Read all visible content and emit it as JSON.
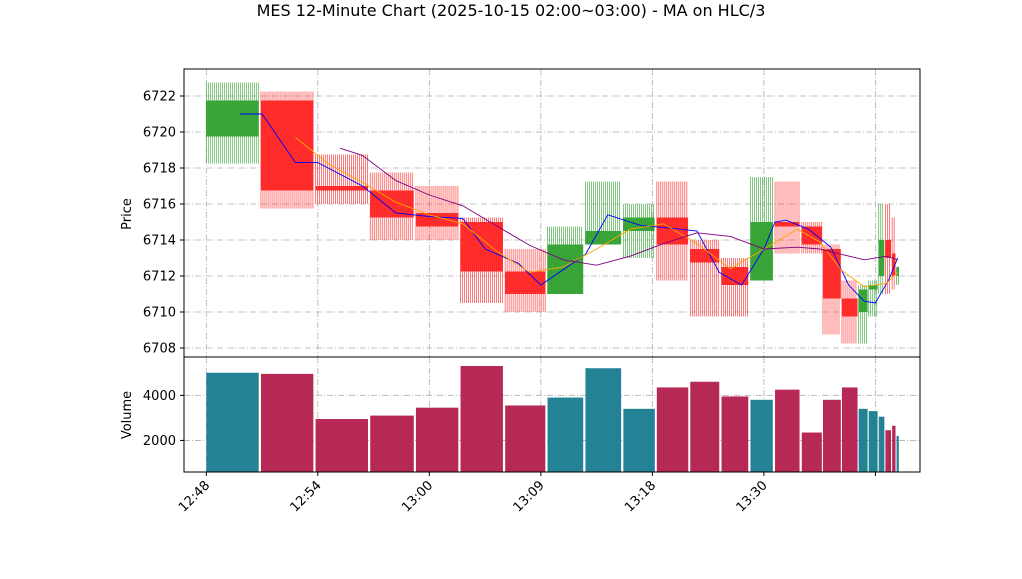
{
  "chart_data": {
    "type": "candlestick",
    "title": "MES 12-Minute Chart (2025-10-15 02:00~03:00) - MA on HLC/3",
    "price_panel": {
      "ylabel": "Price",
      "ylim": [
        6707.5,
        6723.5
      ],
      "yticks": [
        6708,
        6710,
        6712,
        6714,
        6716,
        6718,
        6720,
        6722
      ],
      "grid": true
    },
    "volume_panel": {
      "ylabel": "Volume",
      "ylim": [
        600,
        5700
      ],
      "yticks": [
        2000,
        4000
      ],
      "grid": true
    },
    "xlim": [
      0,
      33
    ],
    "xticks": [
      {
        "x": 1,
        "label": "12:48"
      },
      {
        "x": 6,
        "label": "12:54"
      },
      {
        "x": 11,
        "label": "13:00"
      },
      {
        "x": 16,
        "label": "13:09"
      },
      {
        "x": 21,
        "label": "13:18"
      },
      {
        "x": 26,
        "label": "13:30"
      },
      {
        "x": 31,
        "label": ""
      }
    ],
    "bars": [
      {
        "x0": 1.0,
        "x1": 3.35,
        "open": 6719.75,
        "high": 6722.75,
        "low": 6718.25,
        "close": 6721.75,
        "volume": 5000
      },
      {
        "x0": 3.45,
        "x1": 5.8,
        "open": 6721.75,
        "high": 6722.25,
        "low": 6715.75,
        "close": 6716.75,
        "volume": 4950
      },
      {
        "x0": 5.9,
        "x1": 8.25,
        "open": 6717.0,
        "high": 6718.75,
        "low": 6716.0,
        "close": 6716.75,
        "volume": 2950
      },
      {
        "x0": 8.35,
        "x1": 10.3,
        "open": 6716.75,
        "high": 6717.75,
        "low": 6714.0,
        "close": 6715.25,
        "volume": 3100
      },
      {
        "x0": 10.4,
        "x1": 12.3,
        "open": 6715.5,
        "high": 6717.0,
        "low": 6714.0,
        "close": 6714.75,
        "volume": 3450
      },
      {
        "x0": 12.4,
        "x1": 14.3,
        "open": 6715.0,
        "high": 6715.25,
        "low": 6710.5,
        "close": 6712.25,
        "volume": 5300
      },
      {
        "x0": 14.4,
        "x1": 16.2,
        "open": 6712.25,
        "high": 6713.5,
        "low": 6710.0,
        "close": 6711.0,
        "volume": 3550
      },
      {
        "x0": 16.3,
        "x1": 17.9,
        "open": 6711.0,
        "high": 6714.75,
        "low": 6711.0,
        "close": 6713.75,
        "volume": 3900
      },
      {
        "x0": 18.0,
        "x1": 19.6,
        "open": 6713.75,
        "high": 6717.25,
        "low": 6713.75,
        "close": 6714.5,
        "volume": 5200
      },
      {
        "x0": 19.7,
        "x1": 21.1,
        "open": 6714.5,
        "high": 6716.0,
        "low": 6713.0,
        "close": 6715.25,
        "volume": 3400
      },
      {
        "x0": 21.2,
        "x1": 22.6,
        "open": 6715.25,
        "high": 6717.25,
        "low": 6711.75,
        "close": 6713.75,
        "volume": 4350
      },
      {
        "x0": 22.7,
        "x1": 24.0,
        "open": 6713.5,
        "high": 6714.0,
        "low": 6709.75,
        "close": 6712.75,
        "volume": 4600
      },
      {
        "x0": 24.1,
        "x1": 25.3,
        "open": 6712.5,
        "high": 6713.0,
        "low": 6709.75,
        "close": 6711.5,
        "volume": 3950
      },
      {
        "x0": 25.4,
        "x1": 26.4,
        "open": 6711.75,
        "high": 6717.5,
        "low": 6711.75,
        "close": 6715.0,
        "volume": 3800
      },
      {
        "x0": 26.5,
        "x1": 27.6,
        "open": 6715.0,
        "high": 6717.25,
        "low": 6713.25,
        "close": 6714.75,
        "volume": 4250
      },
      {
        "x0": 27.7,
        "x1": 28.6,
        "open": 6714.75,
        "high": 6715.0,
        "low": 6713.25,
        "close": 6713.75,
        "volume": 2350
      },
      {
        "x0": 28.65,
        "x1": 29.45,
        "open": 6713.5,
        "high": 6713.75,
        "low": 6708.75,
        "close": 6710.75,
        "volume": 3800
      },
      {
        "x0": 29.5,
        "x1": 30.2,
        "open": 6710.75,
        "high": 6711.75,
        "low": 6708.25,
        "close": 6709.75,
        "volume": 4350
      },
      {
        "x0": 30.25,
        "x1": 30.65,
        "open": 6710.0,
        "high": 6711.5,
        "low": 6708.25,
        "close": 6711.25,
        "volume": 3400
      },
      {
        "x0": 30.7,
        "x1": 31.1,
        "open": 6711.25,
        "high": 6711.75,
        "low": 6709.75,
        "close": 6711.5,
        "volume": 3300
      },
      {
        "x0": 31.15,
        "x1": 31.4,
        "open": 6712.0,
        "high": 6716.0,
        "low": 6711.0,
        "close": 6714.0,
        "volume": 3050
      },
      {
        "x0": 31.45,
        "x1": 31.7,
        "open": 6714.0,
        "high": 6716.0,
        "low": 6711.0,
        "close": 6713.0,
        "volume": 2450
      },
      {
        "x0": 31.75,
        "x1": 31.9,
        "open": 6713.25,
        "high": 6715.25,
        "low": 6711.25,
        "close": 6712.0,
        "volume": 2650
      },
      {
        "x0": 31.95,
        "x1": 32.05,
        "open": 6712.0,
        "high": 6712.5,
        "low": 6711.5,
        "close": 6712.5,
        "volume": 2200
      }
    ],
    "moving_averages": [
      {
        "color": "#0000ff",
        "x": [
          2.5,
          3.5,
          5.0,
          6.0,
          8.0,
          9.5,
          11.0,
          12.5,
          13.5,
          15.0,
          16.0,
          18.0,
          19.0,
          20.5,
          21.5,
          23.0,
          24.0,
          25.0,
          26.0,
          26.5,
          27.0,
          28.0,
          29.0,
          29.8,
          30.5,
          31.0,
          31.6,
          32.0
        ],
        "y": [
          6721.0,
          6721.0,
          6718.3,
          6718.3,
          6717.0,
          6715.5,
          6715.3,
          6715.2,
          6713.5,
          6712.7,
          6711.5,
          6713.2,
          6715.4,
          6714.8,
          6714.7,
          6714.5,
          6712.2,
          6711.5,
          6713.5,
          6715.0,
          6715.1,
          6714.6,
          6713.6,
          6711.5,
          6710.6,
          6710.5,
          6711.8,
          6713.0
        ]
      },
      {
        "color": "#ffa500",
        "x": [
          5.0,
          6.5,
          8.0,
          9.5,
          11.0,
          12.5,
          14.0,
          15.5,
          17.0,
          18.5,
          20.0,
          21.5,
          23.0,
          24.5,
          26.0,
          27.5,
          28.5,
          29.5,
          30.5,
          31.5,
          32.0
        ],
        "y": [
          6719.7,
          6718.2,
          6717.2,
          6716.1,
          6715.4,
          6714.9,
          6713.4,
          6712.2,
          6712.5,
          6713.5,
          6714.6,
          6714.9,
          6713.8,
          6712.4,
          6713.5,
          6714.6,
          6713.9,
          6712.3,
          6711.4,
          6711.6,
          6712.2
        ]
      },
      {
        "color": "#800080",
        "x": [
          7.0,
          8.0,
          9.5,
          11.0,
          12.5,
          14.0,
          15.5,
          17.0,
          18.5,
          20.0,
          21.5,
          23.0,
          24.5,
          26.0,
          27.5,
          28.5,
          29.5,
          30.5,
          31.5,
          32.0
        ],
        "y": [
          6719.1,
          6718.7,
          6717.3,
          6716.5,
          6715.9,
          6714.8,
          6713.7,
          6712.9,
          6712.6,
          6713.1,
          6713.8,
          6714.4,
          6714.2,
          6713.5,
          6713.6,
          6713.5,
          6713.2,
          6712.9,
          6713.1,
          6712.9
        ]
      }
    ]
  }
}
